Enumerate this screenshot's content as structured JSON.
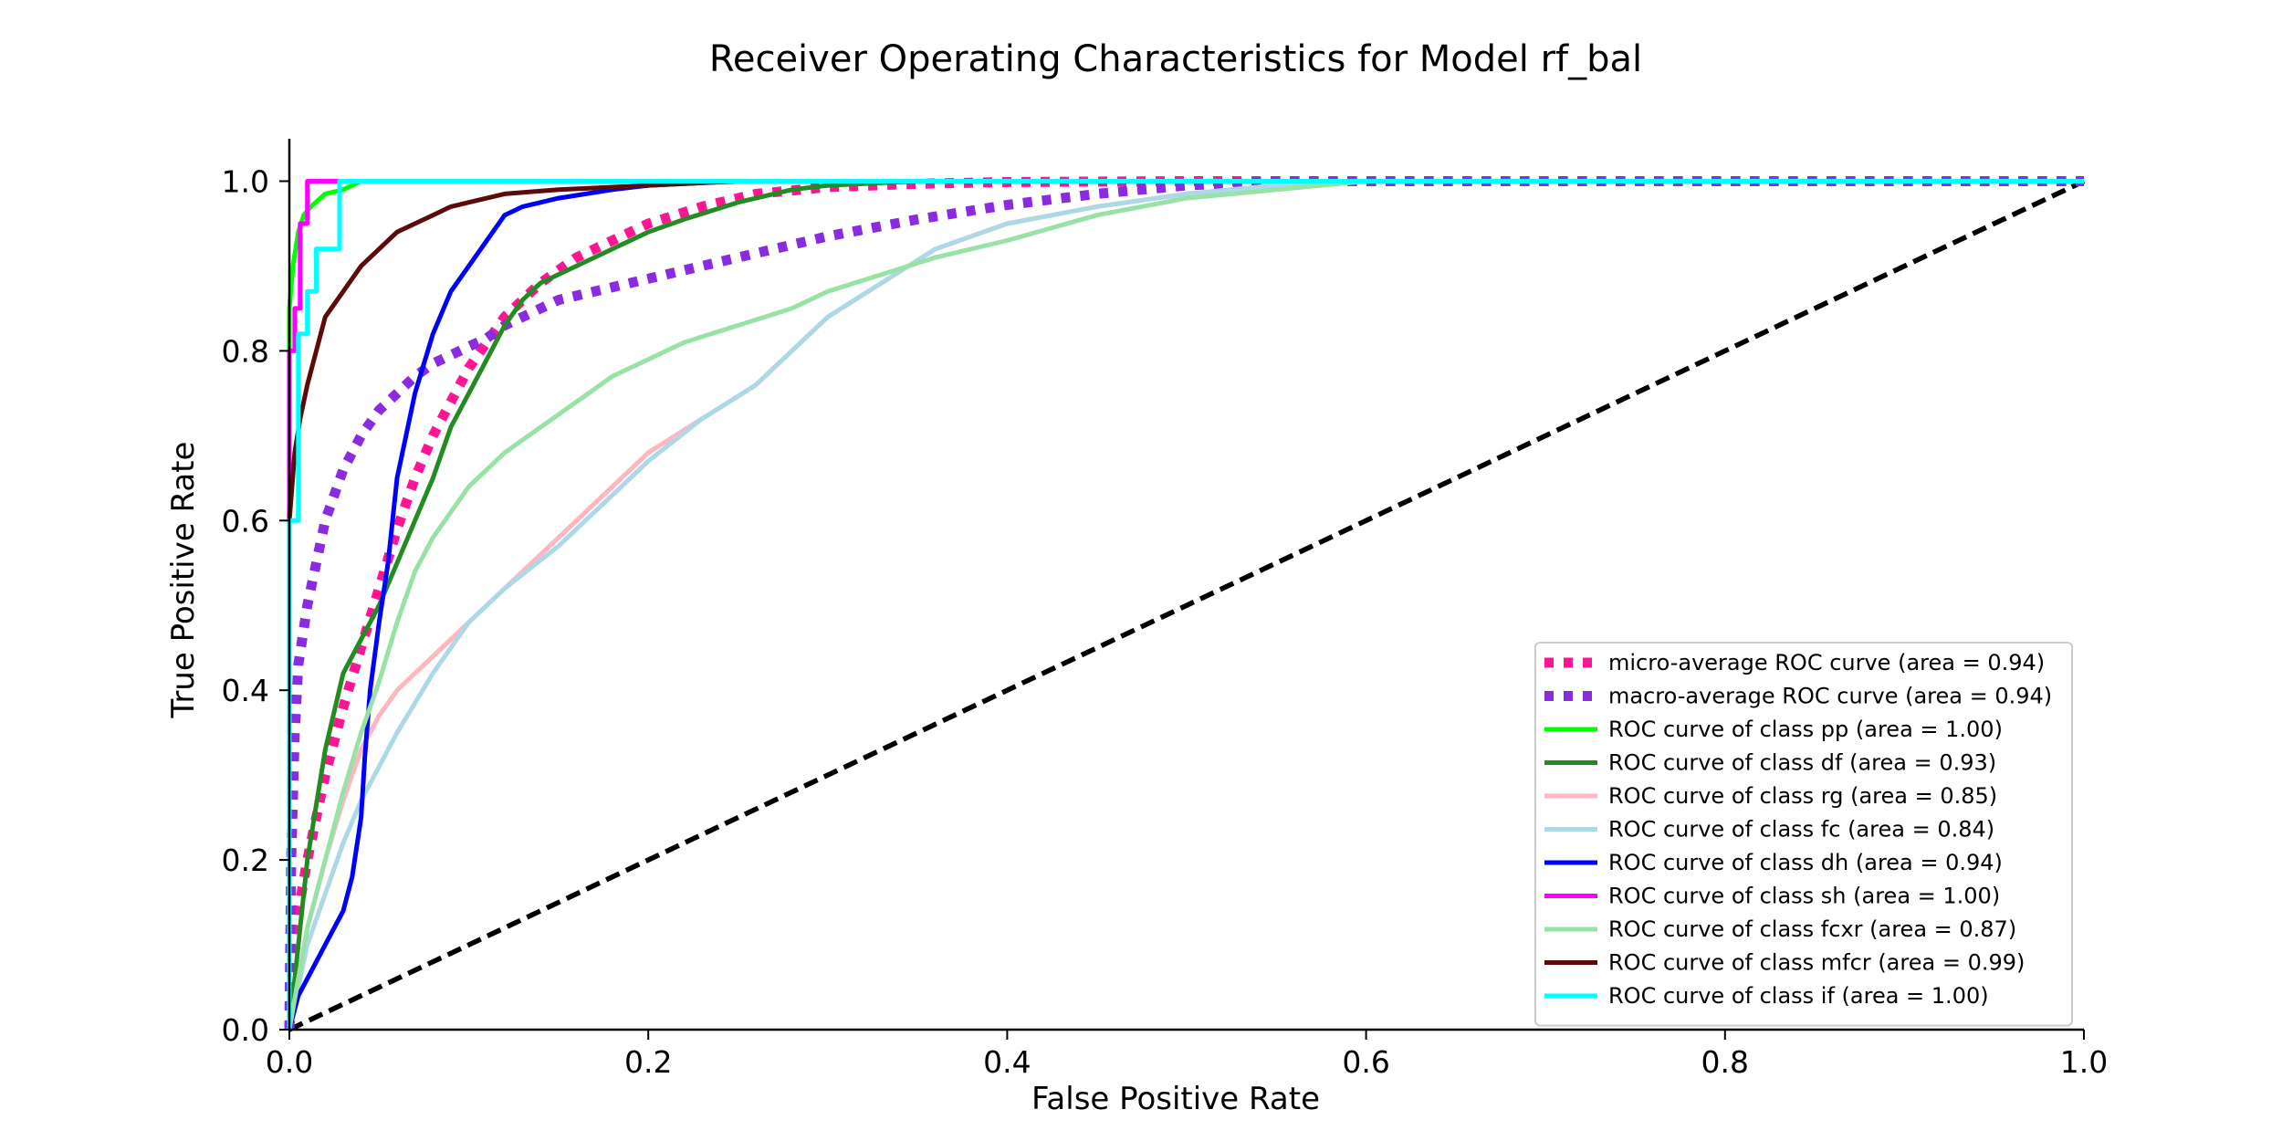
{
  "chart_data": {
    "type": "line",
    "title": "Receiver Operating Characteristics for Model rf_bal",
    "xlabel": "False Positive Rate",
    "ylabel": "True Positive Rate",
    "xlim": [
      0.0,
      1.0
    ],
    "ylim": [
      0.0,
      1.05
    ],
    "xticks": [
      0.0,
      0.2,
      0.4,
      0.6,
      0.8,
      1.0
    ],
    "yticks": [
      0.0,
      0.2,
      0.4,
      0.6,
      0.8,
      1.0
    ],
    "xtick_labels": [
      "0.0",
      "0.2",
      "0.4",
      "0.6",
      "0.8",
      "1.0"
    ],
    "ytick_labels": [
      "0.0",
      "0.2",
      "0.4",
      "0.6",
      "0.8",
      "1.0"
    ],
    "grid": false,
    "legend_position": "lower-right",
    "series": [
      {
        "name": "micro-average ROC curve (area = 0.94)",
        "color": "#ff1493",
        "style": "dotted",
        "x": [
          0.0,
          0.002,
          0.005,
          0.01,
          0.02,
          0.03,
          0.04,
          0.05,
          0.06,
          0.07,
          0.08,
          0.09,
          0.1,
          0.11,
          0.12,
          0.14,
          0.16,
          0.18,
          0.2,
          0.23,
          0.26,
          0.3,
          0.35,
          0.4,
          0.5,
          0.6,
          1.0
        ],
        "y": [
          0.0,
          0.08,
          0.14,
          0.2,
          0.3,
          0.38,
          0.45,
          0.52,
          0.59,
          0.65,
          0.7,
          0.74,
          0.78,
          0.81,
          0.84,
          0.88,
          0.91,
          0.93,
          0.95,
          0.97,
          0.985,
          0.993,
          0.997,
          0.999,
          1.0,
          1.0,
          1.0
        ]
      },
      {
        "name": "macro-average ROC curve (area = 0.94)",
        "color": "#8a2be2",
        "style": "dotted",
        "x": [
          0.0,
          0.001,
          0.003,
          0.005,
          0.01,
          0.02,
          0.03,
          0.04,
          0.05,
          0.06,
          0.07,
          0.08,
          0.09,
          0.1,
          0.11,
          0.12,
          0.13,
          0.15,
          0.2,
          0.25,
          0.3,
          0.35,
          0.4,
          0.45,
          0.5,
          0.55,
          0.6,
          1.0
        ],
        "y": [
          0.0,
          0.2,
          0.35,
          0.43,
          0.5,
          0.6,
          0.66,
          0.7,
          0.73,
          0.75,
          0.77,
          0.785,
          0.795,
          0.805,
          0.815,
          0.83,
          0.84,
          0.86,
          0.885,
          0.91,
          0.935,
          0.955,
          0.972,
          0.985,
          0.995,
          1.0,
          1.0,
          1.0
        ]
      },
      {
        "name": "ROC curve of class pp (area = 1.00)",
        "color": "#00ff00",
        "style": "solid",
        "x": [
          0.0,
          0.0,
          0.002,
          0.005,
          0.008,
          0.012,
          0.02,
          0.03,
          0.04,
          0.1,
          1.0
        ],
        "y": [
          0.0,
          0.85,
          0.9,
          0.94,
          0.96,
          0.97,
          0.985,
          0.99,
          1.0,
          1.0,
          1.0
        ]
      },
      {
        "name": "ROC curve of class df (area = 0.93)",
        "color": "#228b22",
        "style": "solid",
        "x": [
          0.0,
          0.01,
          0.02,
          0.03,
          0.04,
          0.05,
          0.06,
          0.07,
          0.08,
          0.09,
          0.1,
          0.11,
          0.12,
          0.13,
          0.14,
          0.16,
          0.18,
          0.2,
          0.22,
          0.25,
          0.28,
          0.3,
          0.35,
          0.4,
          1.0
        ],
        "y": [
          0.0,
          0.2,
          0.33,
          0.42,
          0.46,
          0.5,
          0.55,
          0.6,
          0.65,
          0.71,
          0.75,
          0.79,
          0.83,
          0.86,
          0.88,
          0.9,
          0.92,
          0.94,
          0.955,
          0.975,
          0.99,
          0.995,
          1.0,
          1.0,
          1.0
        ]
      },
      {
        "name": "ROC curve of class rg (area = 0.85)",
        "color": "#ffb6c1",
        "style": "solid",
        "x": [
          0.0,
          0.01,
          0.02,
          0.03,
          0.04,
          0.05,
          0.06,
          0.07,
          0.08,
          0.1,
          0.12,
          0.15,
          0.18,
          0.2,
          0.23,
          0.26,
          0.28,
          0.3,
          0.33,
          0.36,
          0.4,
          0.45,
          0.5,
          0.55,
          0.6,
          1.0
        ],
        "y": [
          0.0,
          0.12,
          0.2,
          0.27,
          0.33,
          0.37,
          0.4,
          0.42,
          0.44,
          0.48,
          0.52,
          0.58,
          0.64,
          0.68,
          0.72,
          0.76,
          0.8,
          0.84,
          0.88,
          0.92,
          0.95,
          0.97,
          0.985,
          0.995,
          1.0,
          1.0
        ]
      },
      {
        "name": "ROC curve of class fc (area = 0.84)",
        "color": "#add8e6",
        "style": "solid",
        "x": [
          0.0,
          0.01,
          0.02,
          0.03,
          0.04,
          0.05,
          0.06,
          0.08,
          0.1,
          0.12,
          0.15,
          0.18,
          0.2,
          0.23,
          0.26,
          0.28,
          0.3,
          0.33,
          0.36,
          0.4,
          0.45,
          0.5,
          0.55,
          0.6,
          1.0
        ],
        "y": [
          0.0,
          0.1,
          0.16,
          0.22,
          0.27,
          0.31,
          0.35,
          0.42,
          0.48,
          0.52,
          0.57,
          0.63,
          0.67,
          0.72,
          0.76,
          0.8,
          0.84,
          0.88,
          0.92,
          0.95,
          0.97,
          0.985,
          0.995,
          1.0,
          1.0
        ]
      },
      {
        "name": "ROC curve of class dh (area = 0.94)",
        "color": "#0000ff",
        "style": "solid",
        "x": [
          0.0,
          0.005,
          0.01,
          0.02,
          0.03,
          0.035,
          0.04,
          0.042,
          0.045,
          0.05,
          0.055,
          0.06,
          0.07,
          0.08,
          0.09,
          0.1,
          0.11,
          0.12,
          0.13,
          0.15,
          0.18,
          0.2,
          0.25,
          0.3,
          1.0
        ],
        "y": [
          0.0,
          0.04,
          0.06,
          0.1,
          0.14,
          0.18,
          0.25,
          0.32,
          0.4,
          0.48,
          0.55,
          0.65,
          0.75,
          0.82,
          0.87,
          0.9,
          0.93,
          0.96,
          0.97,
          0.98,
          0.99,
          0.995,
          1.0,
          1.0,
          1.0
        ]
      },
      {
        "name": "ROC curve of class sh (area = 1.00)",
        "color": "#ff00ff",
        "style": "solid",
        "x": [
          0.0,
          0.0,
          0.003,
          0.003,
          0.006,
          0.006,
          0.01,
          0.01,
          0.02,
          1.0
        ],
        "y": [
          0.0,
          0.8,
          0.8,
          0.85,
          0.85,
          0.95,
          0.95,
          1.0,
          1.0,
          1.0
        ]
      },
      {
        "name": "ROC curve of class fcxr (area = 0.87)",
        "color": "#98e2a6",
        "style": "solid",
        "x": [
          0.0,
          0.01,
          0.02,
          0.03,
          0.04,
          0.05,
          0.06,
          0.07,
          0.08,
          0.09,
          0.1,
          0.11,
          0.12,
          0.14,
          0.16,
          0.18,
          0.2,
          0.22,
          0.25,
          0.28,
          0.3,
          0.33,
          0.36,
          0.4,
          0.45,
          0.5,
          0.55,
          0.6,
          1.0
        ],
        "y": [
          0.0,
          0.12,
          0.2,
          0.28,
          0.35,
          0.41,
          0.48,
          0.54,
          0.58,
          0.61,
          0.64,
          0.66,
          0.68,
          0.71,
          0.74,
          0.77,
          0.79,
          0.81,
          0.83,
          0.85,
          0.87,
          0.89,
          0.91,
          0.93,
          0.96,
          0.98,
          0.99,
          1.0,
          1.0
        ]
      },
      {
        "name": "ROC curve of class mfcr (area = 0.99)",
        "color": "#5c0a0a",
        "style": "solid",
        "x": [
          0.0,
          0.0,
          0.003,
          0.006,
          0.01,
          0.015,
          0.02,
          0.03,
          0.04,
          0.05,
          0.06,
          0.07,
          0.08,
          0.09,
          0.1,
          0.12,
          0.15,
          0.2,
          0.25,
          1.0
        ],
        "y": [
          0.0,
          0.6,
          0.68,
          0.72,
          0.76,
          0.8,
          0.84,
          0.87,
          0.9,
          0.92,
          0.94,
          0.95,
          0.96,
          0.97,
          0.975,
          0.985,
          0.99,
          0.995,
          1.0,
          1.0
        ]
      },
      {
        "name": "ROC curve of class if (area = 1.00)",
        "color": "#00ffff",
        "style": "solid",
        "x": [
          0.0,
          0.0,
          0.005,
          0.005,
          0.01,
          0.01,
          0.015,
          0.015,
          0.028,
          0.028,
          1.0
        ],
        "y": [
          0.0,
          0.6,
          0.6,
          0.82,
          0.82,
          0.87,
          0.87,
          0.92,
          0.92,
          1.0,
          1.0
        ]
      },
      {
        "name": "",
        "color": "#000000",
        "style": "dashed",
        "x": [
          0.0,
          1.0
        ],
        "y": [
          0.0,
          1.0
        ]
      }
    ]
  }
}
